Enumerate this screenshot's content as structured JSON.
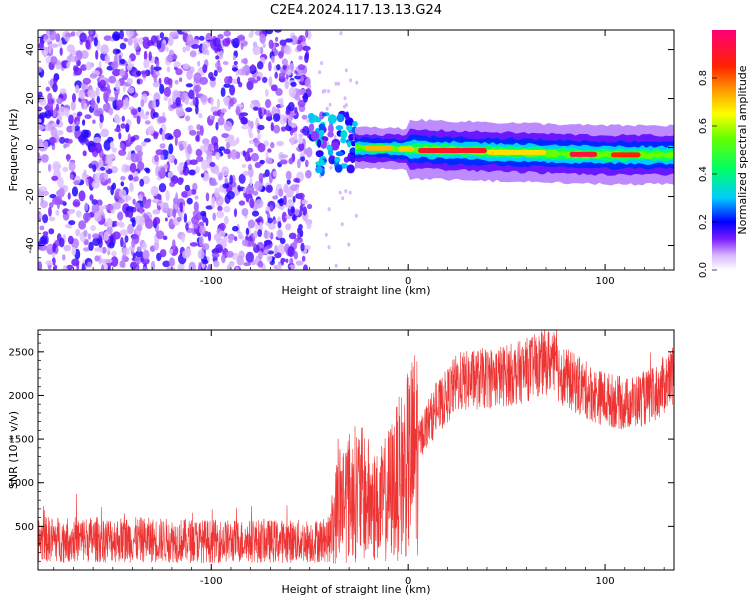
{
  "title": "C2E4.2024.117.13.13.G24",
  "chart_data": [
    {
      "type": "heatmap",
      "xlabel": "Height of straight line (km)",
      "ylabel": "Frequency (Hz)",
      "xlim": [
        -188,
        135
      ],
      "ylim": [
        -50,
        48
      ],
      "x_ticks": [
        -100,
        0,
        100
      ],
      "y_ticks": [
        -40,
        -20,
        0,
        20,
        40
      ],
      "colorbar": {
        "label": "Normalized spectral amplitude",
        "range": [
          0,
          1
        ],
        "ticks": [
          0.0,
          0.2,
          0.4,
          0.6,
          0.8
        ]
      },
      "regions": [
        {
          "name": "noise",
          "x": [
            -188,
            -50
          ],
          "freq": [
            -50,
            48
          ],
          "amplitude": 0.3
        },
        {
          "name": "onset",
          "x": [
            -50,
            -27
          ],
          "freq": [
            -10,
            14
          ],
          "amplitude": 0.45
        },
        {
          "name": "tone",
          "x": [
            -27,
            135
          ],
          "freq_center": [
            0,
            -3
          ],
          "amplitude_peak": 1.0
        }
      ]
    },
    {
      "type": "line",
      "xlabel": "Height of straight line (km)",
      "ylabel": "SNR (10 * v/v)",
      "xlim": [
        -188,
        135
      ],
      "ylim": [
        0,
        2750
      ],
      "x_ticks": [
        -100,
        0,
        100
      ],
      "y_ticks": [
        500,
        1000,
        1500,
        2000,
        2500
      ],
      "series": [
        {
          "color": "#ee3333",
          "envelope": [
            [
              -188,
              350
            ],
            [
              -150,
              350
            ],
            [
              -100,
              330
            ],
            [
              -50,
              330
            ],
            [
              -40,
              350
            ],
            [
              -35,
              800
            ],
            [
              -25,
              900
            ],
            [
              -15,
              700
            ],
            [
              0,
              1200
            ],
            [
              10,
              1700
            ],
            [
              25,
              2150
            ],
            [
              40,
              2200
            ],
            [
              55,
              2250
            ],
            [
              72,
              2400
            ],
            [
              80,
              2200
            ],
            [
              95,
              2000
            ],
            [
              110,
              1900
            ],
            [
              125,
              2000
            ],
            [
              135,
              2250
            ]
          ]
        }
      ]
    }
  ]
}
